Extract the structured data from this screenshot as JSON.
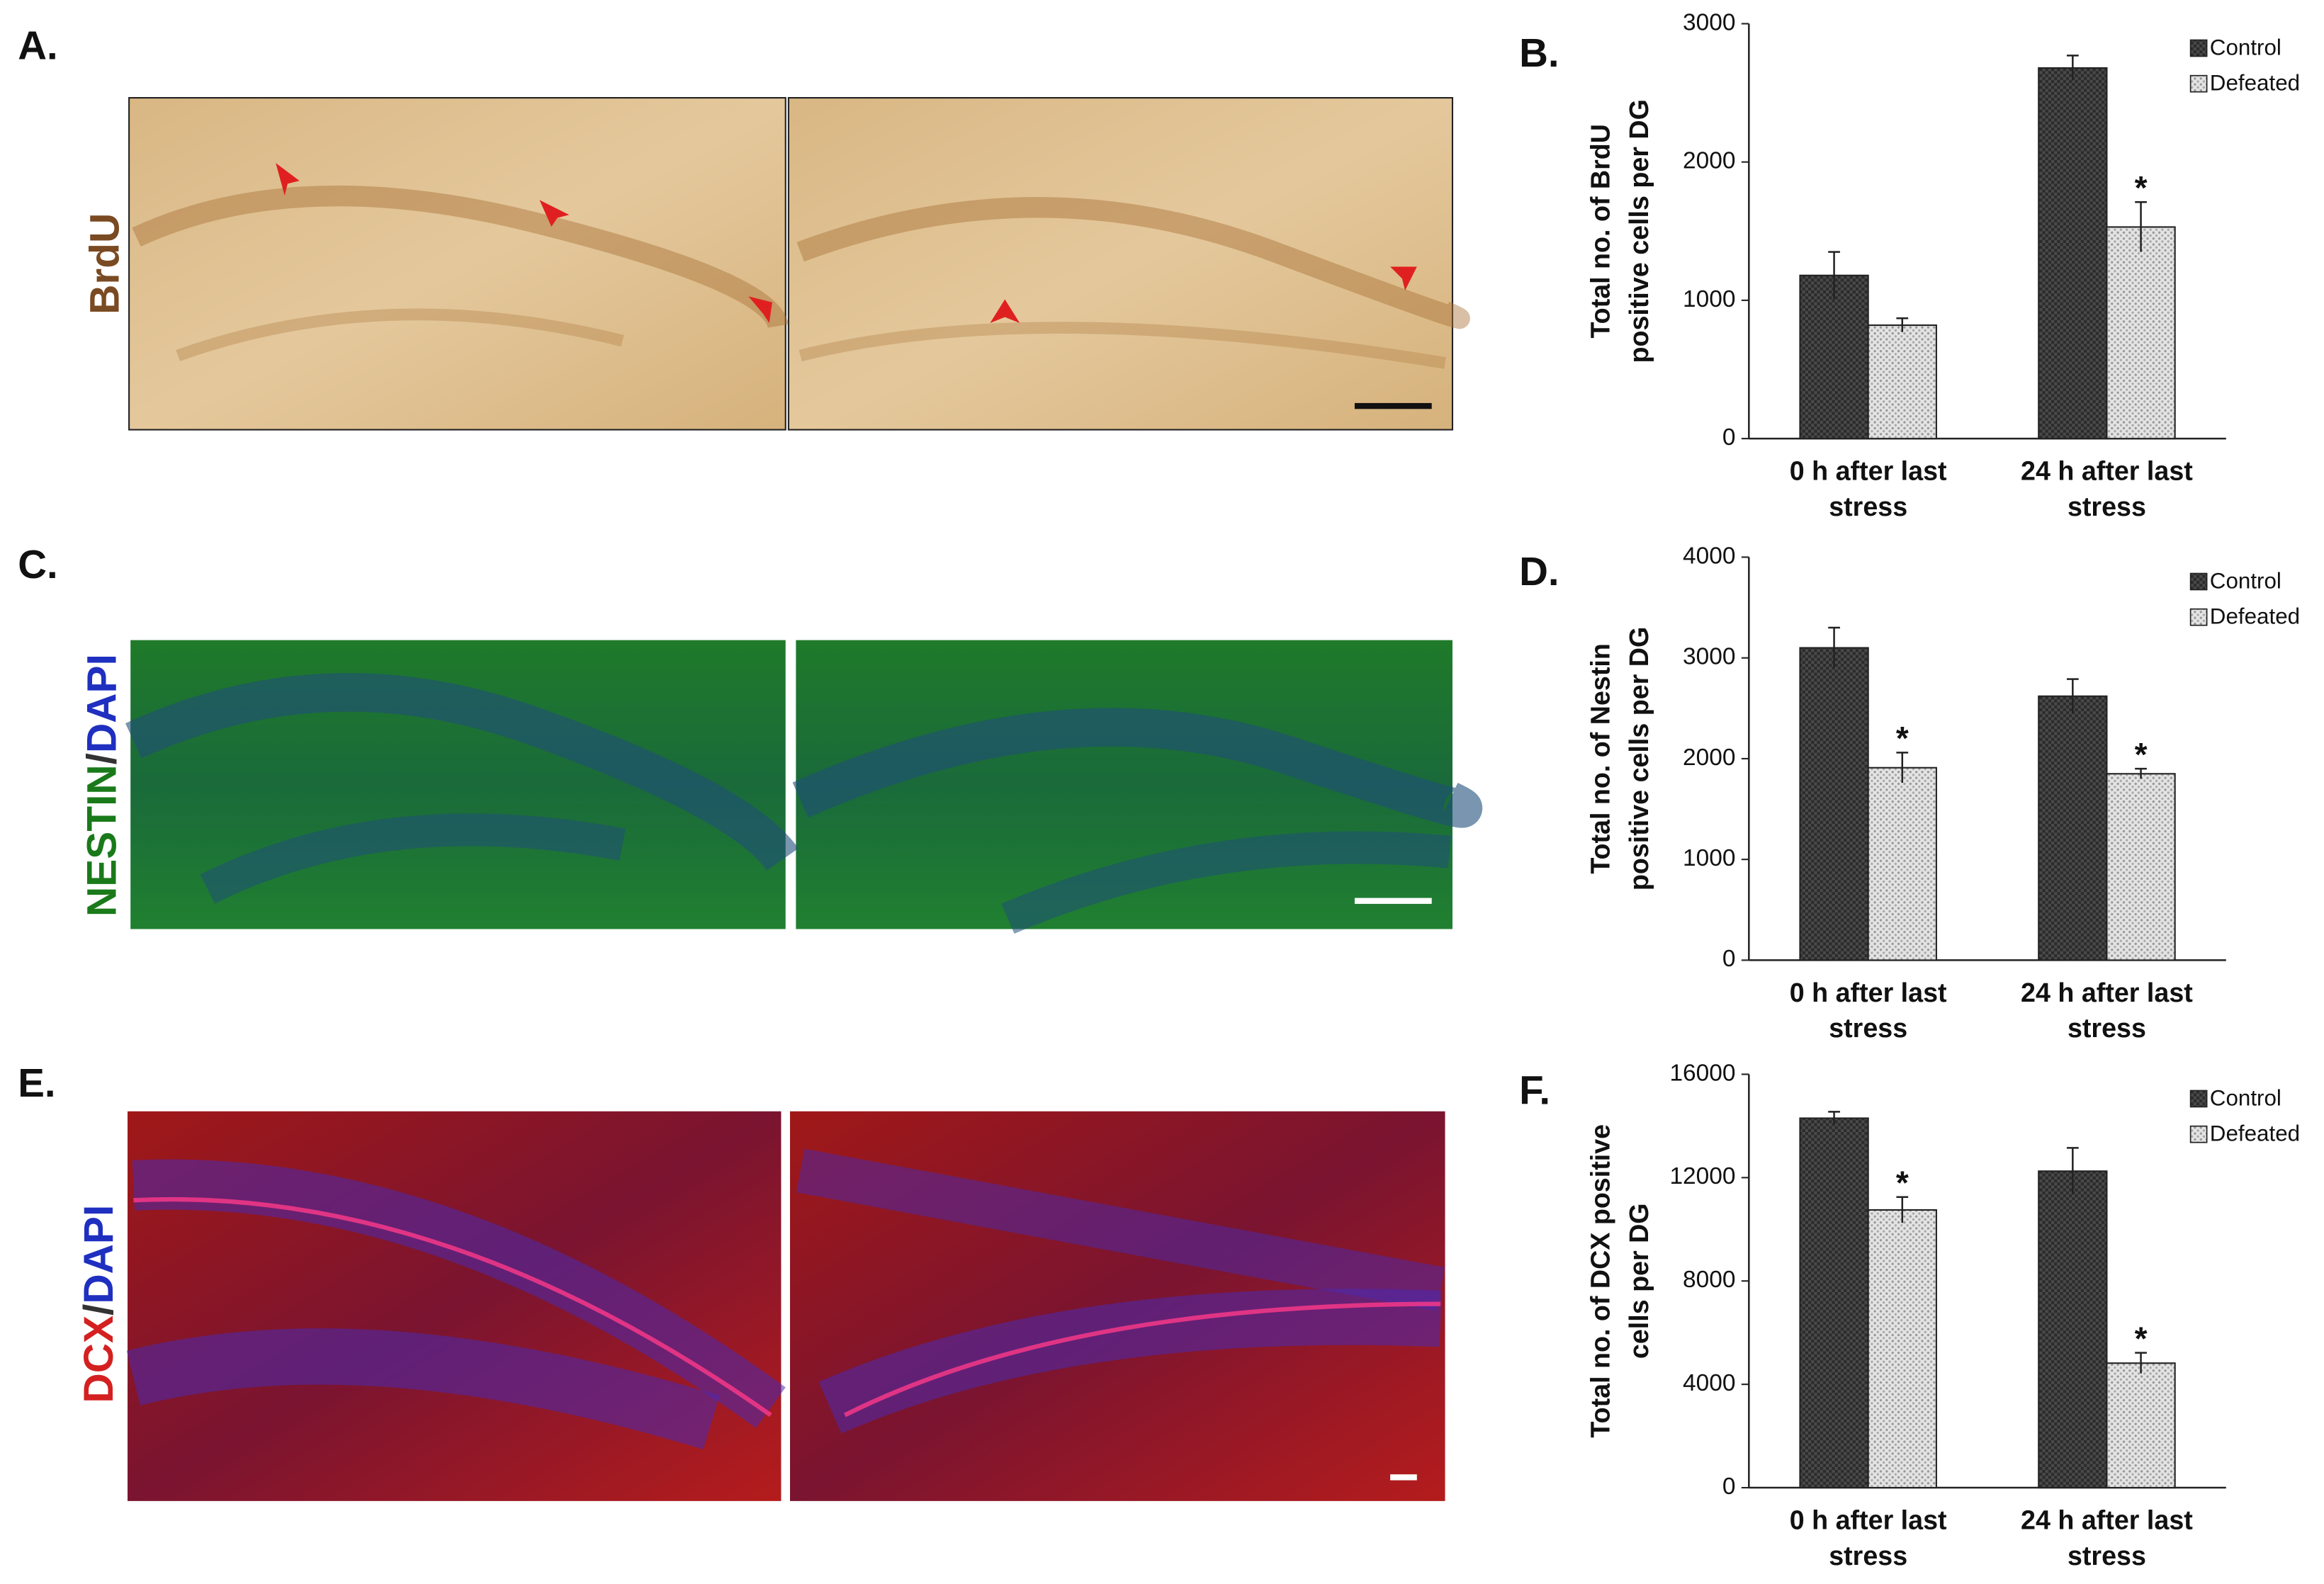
{
  "panels": {
    "a": {
      "letter": "A.",
      "stain": [
        "BrdU"
      ]
    },
    "c": {
      "letter": "C.",
      "stain": [
        "NESTIN",
        "/",
        "DAPI"
      ]
    },
    "e": {
      "letter": "E.",
      "stain": [
        "DCX",
        "/",
        "DAPI"
      ]
    }
  },
  "chart_data": [
    {
      "type": "bar",
      "letter": "B.",
      "ylabel": [
        "Total no. of BrdU",
        "positive cells per DG"
      ],
      "categories": [
        "0 h after last stress",
        "24 h after last stress"
      ],
      "ylim": [
        0,
        3000
      ],
      "yticks": [
        0,
        1000,
        2000,
        3000
      ],
      "grid": false,
      "legend": "top-right",
      "series": [
        {
          "name": "Control",
          "color": "#2b2b2b",
          "values": [
            1180,
            2680
          ],
          "errors": [
            170,
            90
          ],
          "markers": [
            null,
            null
          ]
        },
        {
          "name": "Defeated",
          "color": "#dcdcdc",
          "values": [
            820,
            1530
          ],
          "errors": [
            50,
            180
          ],
          "markers": [
            null,
            "*"
          ]
        }
      ]
    },
    {
      "type": "bar",
      "letter": "D.",
      "ylabel": [
        "Total no. of Nestin",
        "positive cells per DG"
      ],
      "categories": [
        "0 h after last stress",
        "24 h after last stress"
      ],
      "ylim": [
        0,
        4000
      ],
      "yticks": [
        0,
        1000,
        2000,
        3000,
        4000
      ],
      "grid": false,
      "legend": "top-right",
      "series": [
        {
          "name": "Control",
          "color": "#2b2b2b",
          "values": [
            3100,
            2620
          ],
          "errors": [
            200,
            170
          ],
          "markers": [
            null,
            null
          ]
        },
        {
          "name": "Defeated",
          "color": "#dcdcdc",
          "values": [
            1910,
            1850
          ],
          "errors": [
            150,
            50
          ],
          "markers": [
            "*",
            "*"
          ]
        }
      ]
    },
    {
      "type": "bar",
      "letter": "F.",
      "ylabel": [
        "Total no. of DCX positive",
        "cells per DG"
      ],
      "categories": [
        "0 h after last stress",
        "24 h after last stress"
      ],
      "ylim": [
        0,
        16000
      ],
      "yticks": [
        0,
        4000,
        8000,
        12000,
        16000
      ],
      "grid": false,
      "legend": "top-right",
      "series": [
        {
          "name": "Control",
          "color": "#2b2b2b",
          "values": [
            14300,
            12250
          ],
          "errors": [
            250,
            900
          ],
          "markers": [
            null,
            null
          ]
        },
        {
          "name": "Defeated",
          "color": "#dcdcdc",
          "values": [
            10750,
            4820
          ],
          "errors": [
            500,
            400
          ],
          "markers": [
            "*",
            "*"
          ]
        }
      ]
    }
  ]
}
